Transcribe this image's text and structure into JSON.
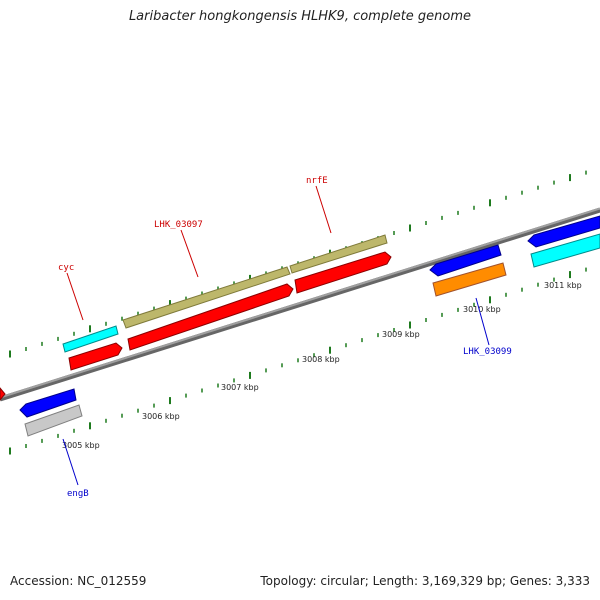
{
  "title": "Laribacter hongkongensis HLHK9, complete genome",
  "footer": {
    "accession": "Accession: NC_012559",
    "topology": "Topology: circular; Length: 3,169,329 bp; Genes: 3,333"
  },
  "colors": {
    "backbone": "#8c8c8c",
    "tick": "#1e7a1e",
    "forward_label": "#cc0000",
    "reverse_label": "#0000cc",
    "red": "#ff0000",
    "olive": "#bdb76b",
    "cyan": "#00ffff",
    "blue": "#0000ff",
    "orange": "#ff8c00",
    "gray": "#c8c8c8"
  },
  "scale_labels": [
    "3005 kbp",
    "3006 kbp",
    "3007 kbp",
    "3008 kbp",
    "3009 kbp",
    "3010 kbp",
    "3011 kbp"
  ],
  "gene_labels": {
    "cyc": "cyc",
    "lhk_03097": "LHK_03097",
    "nrfe": "nrfE",
    "lhk_03099": "LHK_03099",
    "engb": "engB"
  }
}
